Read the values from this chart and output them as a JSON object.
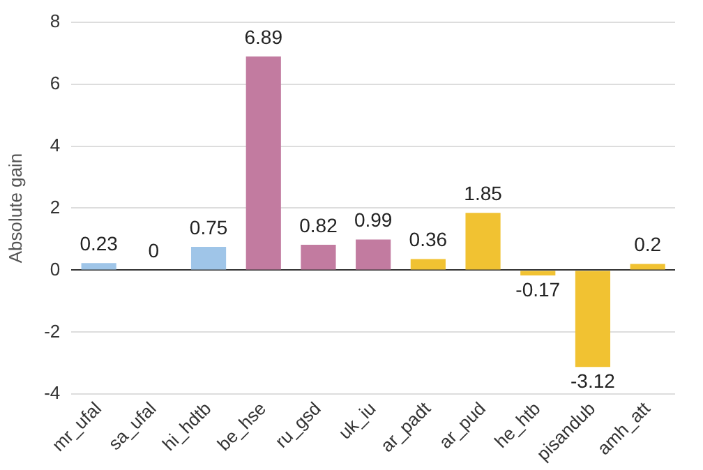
{
  "chart_data": {
    "type": "bar",
    "ylabel": "Absolute gain",
    "categories": [
      "mr_ufal",
      "sa_ufal",
      "hi_hdtb",
      "be_hse",
      "ru_gsd",
      "uk_iu",
      "ar_padt",
      "ar_pud",
      "he_htb",
      "pisandub",
      "amh_att"
    ],
    "values": [
      0.23,
      0,
      0.75,
      6.89,
      0.82,
      0.99,
      0.36,
      1.85,
      -0.17,
      -3.12,
      0.2
    ],
    "colors": [
      "#9fc5e8",
      "#9fc5e8",
      "#9fc5e8",
      "#c27ba0",
      "#c27ba0",
      "#c27ba0",
      "#f1c232",
      "#f1c232",
      "#f1c232",
      "#f1c232",
      "#f1c232"
    ],
    "ylim": [
      -4,
      8
    ],
    "yticks": [
      -4,
      -2,
      0,
      2,
      4,
      6,
      8
    ],
    "grid": "y",
    "legend": false,
    "data_labels": true
  }
}
